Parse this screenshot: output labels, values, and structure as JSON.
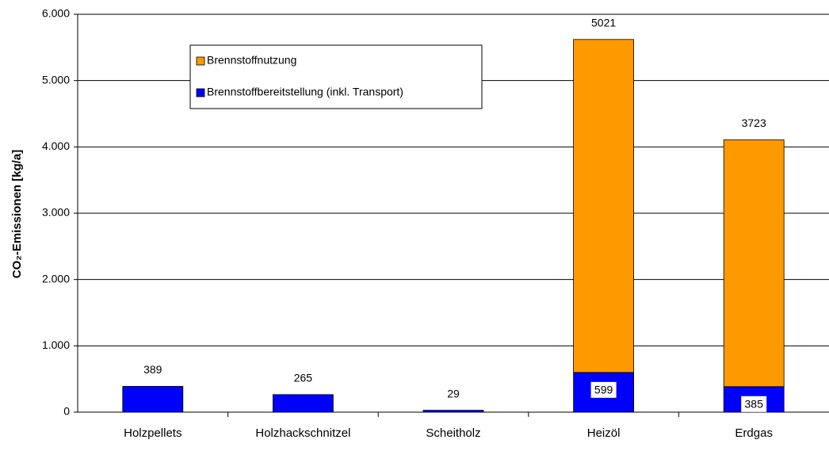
{
  "chart_data": {
    "type": "stacked-bar",
    "ylabel": "CO₂-Emissionen [kg/a]",
    "categories": [
      "Holzpellets",
      "Holzhackschnitzel",
      "Scheitholz",
      "Heizöl",
      "Erdgas"
    ],
    "series": [
      {
        "name": "Brennstoffbereitstellung (inkl. Transport)",
        "color": "#0000ff",
        "values": [
          389,
          265,
          29,
          599,
          385
        ]
      },
      {
        "name": "Brennstoffnutzung",
        "color": "#ff9900",
        "values": [
          null,
          null,
          null,
          5021,
          3723
        ]
      }
    ],
    "ylim": [
      0,
      6000
    ],
    "yticks": [
      0,
      {
        "value": 1000,
        "label": "1.000"
      },
      {
        "value": 2000,
        "label": "2.000"
      },
      {
        "value": 3000,
        "label": "3.000"
      },
      {
        "value": 4000,
        "label": "4.000"
      },
      {
        "value": 5000,
        "label": "5.000"
      },
      {
        "value": 6000,
        "label": "6.000"
      }
    ],
    "grid": true,
    "legend": "top-left"
  }
}
